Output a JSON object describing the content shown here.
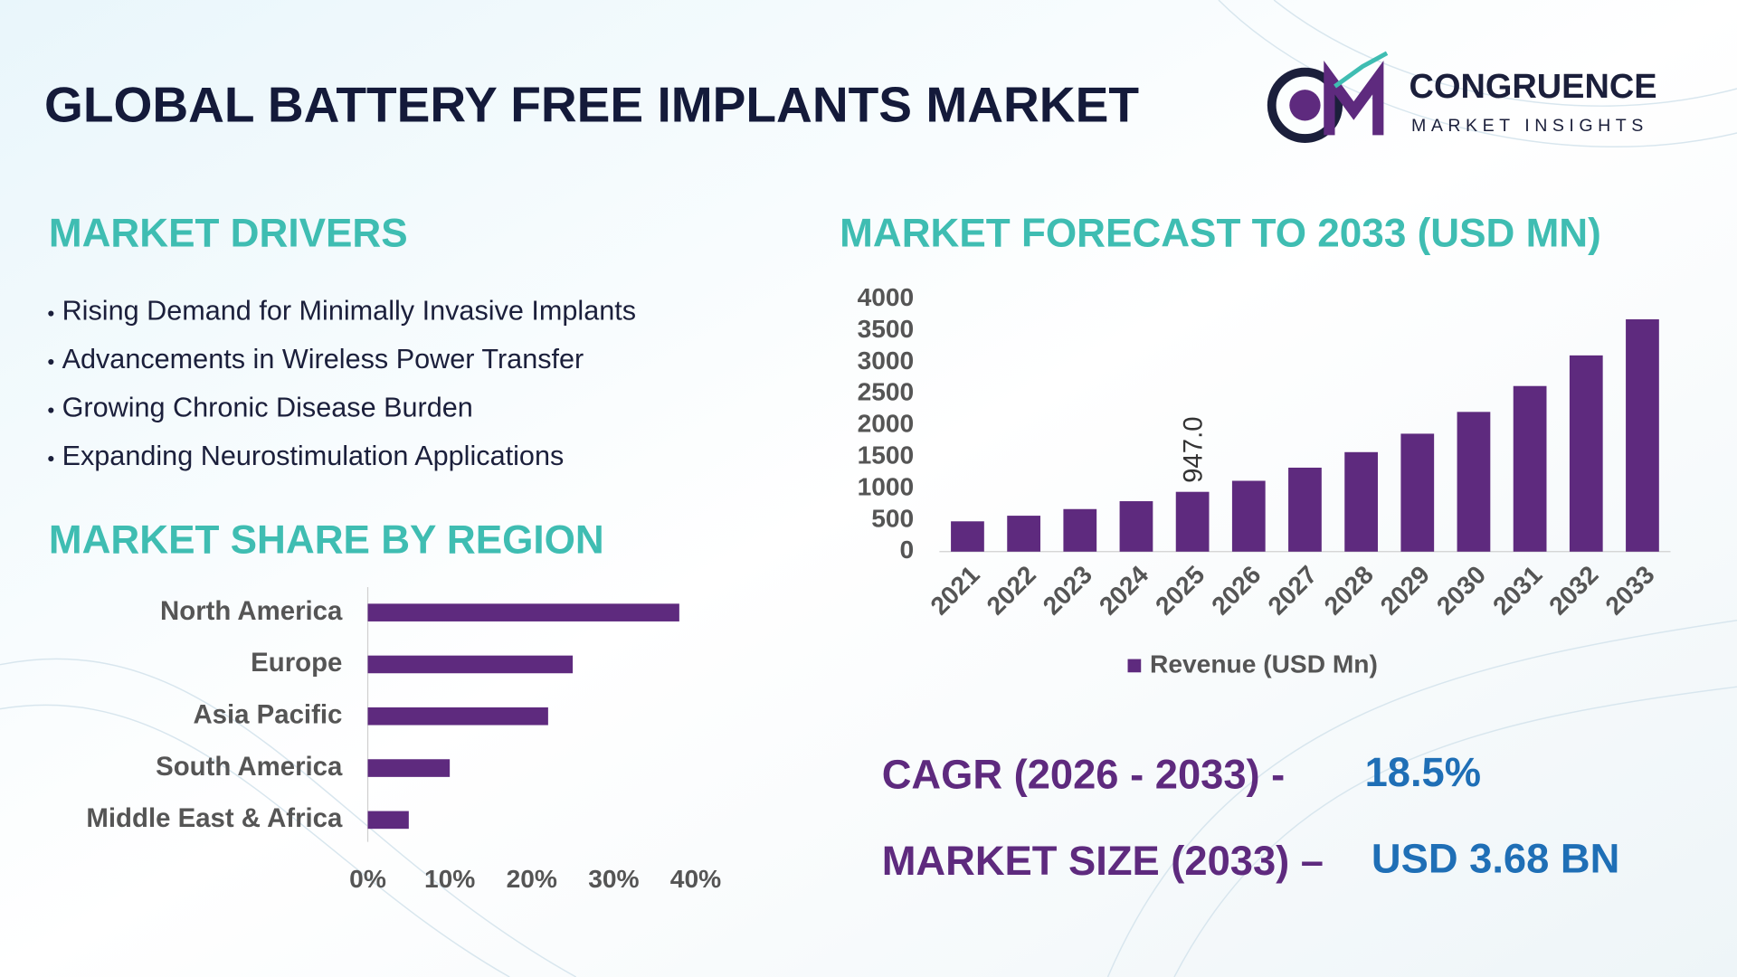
{
  "header": {
    "title": "GLOBAL BATTERY FREE IMPLANTS MARKET",
    "logo_name": "CONGRUENCE",
    "logo_tagline": "MARKET INSIGHTS"
  },
  "drivers": {
    "title": "MARKET DRIVERS",
    "items": [
      "Rising Demand for Minimally Invasive Implants",
      "Advancements in Wireless Power Transfer",
      "Growing Chronic Disease Burden",
      "Expanding Neurostimulation Applications"
    ]
  },
  "summary": {
    "cagr_label": "CAGR (2026 - 2033) -",
    "cagr_value": "18.5%",
    "size_label": "MARKET SIZE (2033) –",
    "size_value": "USD 3.68 BN"
  },
  "chart_data": [
    {
      "type": "bar",
      "title": "MARKET FORECAST TO 2033 (USD MN)",
      "categories": [
        "2021",
        "2022",
        "2023",
        "2024",
        "2025",
        "2026",
        "2027",
        "2028",
        "2029",
        "2030",
        "2031",
        "2032",
        "2033"
      ],
      "series": [
        {
          "name": "Revenue (USD Mn)",
          "color": "#5e2a7e",
          "values": [
            480,
            569,
            674,
            799,
            947,
            1122,
            1330,
            1576,
            1868,
            2213,
            2623,
            3108,
            3680
          ],
          "value_labels": [
            null,
            null,
            null,
            null,
            "947.0",
            null,
            null,
            null,
            null,
            null,
            null,
            null,
            null
          ]
        }
      ],
      "ylim": [
        0,
        4000
      ],
      "yticks": [
        0,
        500,
        1000,
        1500,
        2000,
        2500,
        3000,
        3500,
        4000
      ],
      "legend": "bottom"
    },
    {
      "type": "barh",
      "title": "MARKET SHARE BY REGION",
      "categories": [
        "North America",
        "Europe",
        "Asia Pacific",
        "South America",
        "Middle East & Africa"
      ],
      "values": [
        38,
        25,
        22,
        10,
        5
      ],
      "color": "#5e2a7e",
      "xlim": [
        0,
        40
      ],
      "xticks": [
        {
          "value": 0,
          "label": "0%"
        },
        {
          "value": 10,
          "label": "10%"
        },
        {
          "value": 20,
          "label": "20%"
        },
        {
          "value": 30,
          "label": "30%"
        },
        {
          "value": 40,
          "label": "40%"
        }
      ]
    }
  ]
}
